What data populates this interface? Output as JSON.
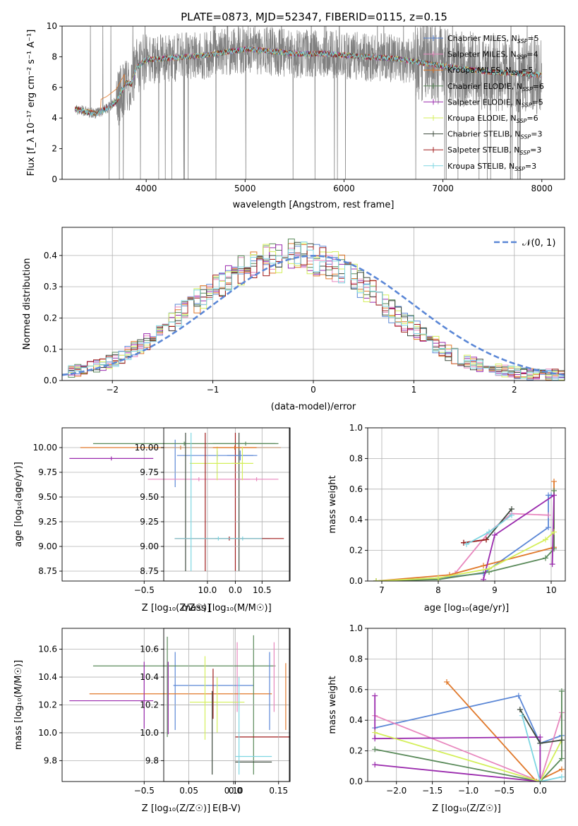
{
  "colors": {
    "Chabrier MILES": "#5b87d6",
    "Salpeter MILES": "#e887be",
    "Kroupa MILES": "#e0782a",
    "Chabrier ELODIE": "#5a8a5a",
    "Salpeter ELODIE": "#9a2aad",
    "Kroupa ELODIE": "#d4ef5a",
    "Chabrier STELIB": "#3d4a3d",
    "Salpeter STELIB": "#a01c1c",
    "Kroupa STELIB": "#7ed6e2",
    "data": "#808080",
    "gauss": "#5b87d6"
  },
  "chart_data": [
    {
      "type": "line",
      "title": "PLATE=0873, MJD=52347, FIBERID=0115, z=0.15",
      "xlabel": "wavelength [Angstrom, rest frame]",
      "ylabel": "Flux [f_λ 10⁻¹⁷ erg cm⁻² s⁻¹ A⁻¹]",
      "xlim": [
        3150,
        8230
      ],
      "ylim": [
        0,
        10
      ],
      "xticks": [
        4000,
        5000,
        6000,
        7000,
        8000
      ],
      "yticks": [
        0,
        2,
        4,
        6,
        8,
        10
      ],
      "legend_position": "right",
      "legend": [
        {
          "model": "Chabrier MILES",
          "label": "Chabrier MILES, N",
          "n": "5"
        },
        {
          "model": "Salpeter MILES",
          "label": "Salpeter MILES, N",
          "n": "4"
        },
        {
          "model": "Kroupa MILES",
          "label": "Kroupa MILES, N",
          "n": "5"
        },
        {
          "model": "Chabrier ELODIE",
          "label": "Chabrier ELODIE, N",
          "n": "6"
        },
        {
          "model": "Salpeter ELODIE",
          "label": "Salpeter ELODIE, N",
          "n": "5"
        },
        {
          "model": "Kroupa ELODIE",
          "label": "Kroupa ELODIE, N",
          "n": "6"
        },
        {
          "model": "Chabrier STELIB",
          "label": "Chabrier STELIB, N",
          "n": "3"
        },
        {
          "model": "Salpeter STELIB",
          "label": "Salpeter STELIB, N",
          "n": "3"
        },
        {
          "model": "Kroupa STELIB",
          "label": "Kroupa STELIB, N",
          "n": "3"
        }
      ],
      "legend_subscript": "SSP",
      "model_envelope": {
        "x": [
          3280,
          3400,
          3500,
          3600,
          3700,
          3800,
          3850,
          3900,
          4000,
          4200,
          4400,
          4600,
          4800,
          5000,
          5200,
          5500,
          5800,
          6000,
          6200,
          6500,
          6800,
          7000,
          7200,
          7500,
          7800,
          8000
        ],
        "y": [
          4.6,
          4.4,
          4.3,
          4.6,
          5.1,
          6.3,
          6.2,
          7.3,
          7.8,
          7.9,
          8.0,
          8.1,
          8.3,
          8.5,
          8.4,
          8.2,
          8.2,
          8.1,
          8.0,
          7.9,
          7.6,
          7.4,
          7.2,
          7.0,
          6.9,
          6.8
        ]
      },
      "noise_amplitude": 1.6
    },
    {
      "type": "bar",
      "xlabel": "(data-model)/error",
      "ylabel": "Normed distribution",
      "xlim": [
        -2.5,
        2.5
      ],
      "ylim": [
        0,
        0.49
      ],
      "xticks": [
        -2,
        -1,
        0,
        1,
        2
      ],
      "yticks": [
        0.0,
        0.1,
        0.2,
        0.3,
        0.4
      ],
      "legend_position": "upper right",
      "gauss_label": "𝒩(0, 1)",
      "bin_width": 0.1,
      "bin_start": -2.5,
      "envelope": [
        0.025,
        0.03,
        0.033,
        0.036,
        0.04,
        0.045,
        0.052,
        0.06,
        0.068,
        0.078,
        0.088,
        0.099,
        0.11,
        0.125,
        0.14,
        0.155,
        0.17,
        0.19,
        0.21,
        0.225,
        0.24,
        0.255,
        0.27,
        0.285,
        0.3,
        0.315,
        0.325,
        0.34,
        0.35,
        0.36,
        0.37,
        0.38,
        0.385,
        0.39,
        0.395,
        0.4,
        0.4,
        0.4,
        0.395,
        0.39,
        0.385,
        0.38,
        0.375,
        0.365,
        0.355,
        0.34,
        0.325,
        0.31,
        0.295,
        0.28,
        0.255,
        0.235,
        0.22,
        0.205,
        0.19,
        0.175,
        0.16,
        0.145,
        0.13,
        0.115,
        0.1,
        0.088,
        0.078,
        0.068,
        0.06,
        0.053,
        0.047,
        0.042,
        0.037,
        0.033,
        0.03,
        0.028,
        0.026,
        0.024,
        0.022,
        0.02,
        0.019,
        0.018,
        0.017,
        0.016
      ],
      "spread": 0.045
    },
    {
      "type": "scatter",
      "panel": "age_vs_Z",
      "xlabel": "Z [log₁₀(Z/Z☉)]",
      "ylabel": "age  [log₁₀(age/yr)]",
      "xlim": [
        -0.95,
        0.3
      ],
      "ylim": [
        8.65,
        10.2
      ],
      "xticks": [
        -0.5,
        0.0
      ],
      "yticks": [
        8.75,
        9.0,
        9.25,
        9.5,
        9.75,
        10.0
      ],
      "points": [
        {
          "model": "Chabrier MILES",
          "x": -0.1,
          "xerr": 0.22,
          "y": 9.92,
          "yerr": 0.05
        },
        {
          "model": "Chabrier MILES",
          "x": -0.33,
          "xerr": 0.0,
          "y": 9.84,
          "yerr": 0.24
        },
        {
          "model": "Salpeter MILES",
          "x": -0.2,
          "xerr": 0.28,
          "y": 9.68,
          "yerr": 0.02
        },
        {
          "model": "Kroupa MILES",
          "x": -0.3,
          "xerr": 0.55,
          "y": 10.0,
          "yerr": 0.02
        },
        {
          "model": "Chabrier ELODIE",
          "x": -0.28,
          "xerr": 0.5,
          "y": 10.04,
          "yerr": 0.02
        },
        {
          "model": "Salpeter ELODIE",
          "x": -0.68,
          "xerr": 0.23,
          "y": 9.89,
          "yerr": 0.02
        },
        {
          "model": "Kroupa ELODIE",
          "x": -0.1,
          "xerr": 0.15,
          "y": 9.84,
          "yerr": 0.17
        },
        {
          "model": "Chabrier STELIB",
          "x": 0.02,
          "xerr": 0.0,
          "y": 9.45,
          "yerr": 0.7
        },
        {
          "model": "Salpeter STELIB",
          "x": 0.0,
          "xerr": 0.0,
          "y": 9.45,
          "yerr": 0.7
        },
        {
          "model": "Kroupa STELIB",
          "x": 0.04,
          "xerr": 0.15,
          "y": 9.08,
          "yerr": 0.02
        }
      ]
    },
    {
      "type": "scatter",
      "panel": "age_vs_mass",
      "xlabel": "mass [log₁₀(M/M☉)]",
      "xlim": [
        9.6,
        10.75
      ],
      "ylim": [
        8.65,
        10.2
      ],
      "xticks": [
        10.0,
        10.5
      ],
      "yticks": [
        8.75,
        9.0,
        9.25,
        9.5,
        9.75,
        10.0
      ],
      "points": [
        {
          "model": "Chabrier MILES",
          "x": 10.3,
          "xerr": 0.12,
          "y": 9.92,
          "yerr": 0.05
        },
        {
          "model": "Salpeter MILES",
          "x": 10.45,
          "xerr": 0.2,
          "y": 9.68,
          "yerr": 0.02
        },
        {
          "model": "Kroupa MILES",
          "x": 10.25,
          "xerr": 0.2,
          "y": 10.0,
          "yerr": 0.02
        },
        {
          "model": "Chabrier ELODIE",
          "x": 10.35,
          "xerr": 0.3,
          "y": 10.04,
          "yerr": 0.02
        },
        {
          "model": "Kroupa ELODIE",
          "x": 10.32,
          "xerr": 0.1,
          "y": 9.84,
          "yerr": 0.17
        },
        {
          "model": "Chabrier STELIB",
          "x": 9.8,
          "xerr": 0.0,
          "y": 9.45,
          "yerr": 0.7
        },
        {
          "model": "Salpeter STELIB",
          "x": 9.98,
          "xerr": 0.0,
          "y": 9.45,
          "yerr": 0.7
        },
        {
          "model": "Salpeter STELIB",
          "x": 10.2,
          "xerr": 0.5,
          "y": 9.08,
          "yerr": 0.02
        },
        {
          "model": "Kroupa STELIB",
          "x": 9.85,
          "xerr": 0.0,
          "y": 9.45,
          "yerr": 0.7
        },
        {
          "model": "Kroupa STELIB",
          "x": 10.1,
          "xerr": 0.4,
          "y": 9.08,
          "yerr": 0.02
        }
      ]
    },
    {
      "type": "line",
      "panel": "weight_vs_age",
      "xlabel": "age  [log₁₀(age/yr)]",
      "ylabel": "mass weight",
      "xlim": [
        6.75,
        10.25
      ],
      "ylim": [
        0,
        1
      ],
      "xticks": [
        7,
        8,
        9,
        10
      ],
      "yticks": [
        0.0,
        0.2,
        0.4,
        0.6,
        0.8,
        1.0
      ],
      "series": [
        {
          "model": "Chabrier MILES",
          "x": [
            6.9,
            8.0,
            8.8,
            9.95,
            9.95,
            10.0
          ],
          "y": [
            0.0,
            0.02,
            0.05,
            0.35,
            0.56,
            0.56
          ]
        },
        {
          "model": "Salpeter MILES",
          "x": [
            8.3,
            8.9,
            9.3,
            9.95
          ],
          "y": [
            0.05,
            0.32,
            0.44,
            0.43
          ]
        },
        {
          "model": "Kroupa MILES",
          "x": [
            6.9,
            8.2,
            8.8,
            10.05,
            10.05
          ],
          "y": [
            0.0,
            0.04,
            0.1,
            0.22,
            0.65
          ]
        },
        {
          "model": "Chabrier ELODIE",
          "x": [
            6.9,
            8.0,
            8.9,
            9.9,
            10.05,
            10.05
          ],
          "y": [
            0.0,
            0.01,
            0.06,
            0.15,
            0.21,
            0.59
          ]
        },
        {
          "model": "Salpeter ELODIE",
          "x": [
            8.8,
            9.0,
            10.05,
            10.02
          ],
          "y": [
            0.01,
            0.3,
            0.56,
            0.11
          ]
        },
        {
          "model": "Kroupa ELODIE",
          "x": [
            6.9,
            8.0,
            8.9,
            9.9,
            10.05
          ],
          "y": [
            0.0,
            0.02,
            0.08,
            0.27,
            0.32
          ]
        },
        {
          "model": "Chabrier STELIB",
          "x": [
            8.45,
            8.85,
            9.3
          ],
          "y": [
            0.25,
            0.27,
            0.47
          ]
        },
        {
          "model": "Salpeter STELIB",
          "x": [
            8.45,
            8.85
          ],
          "y": [
            0.25,
            0.27
          ]
        },
        {
          "model": "Kroupa STELIB",
          "x": [
            8.5,
            8.9,
            9.3
          ],
          "y": [
            0.24,
            0.32,
            0.43
          ]
        }
      ]
    },
    {
      "type": "scatter",
      "panel": "mass_vs_Z",
      "xlabel": "Z [log₁₀(Z/Z☉)]",
      "ylabel": "mass [log₁₀(M/M☉)]",
      "xlim": [
        -0.95,
        0.3
      ],
      "ylim": [
        9.65,
        10.75
      ],
      "xticks": [
        -0.5,
        0.0
      ],
      "yticks": [
        9.8,
        10.0,
        10.2,
        10.4,
        10.6
      ],
      "points": [
        {
          "model": "Chabrier MILES",
          "x": -0.12,
          "xerr": 0.22,
          "y": 10.34,
          "yerr": 0.0
        },
        {
          "model": "Chabrier MILES",
          "x": -0.33,
          "xerr": 0.0,
          "y": 10.3,
          "yerr": 0.28
        },
        {
          "model": "Salpeter MILES",
          "x": 0.01,
          "xerr": 0.0,
          "y": 10.4,
          "yerr": 0.25
        },
        {
          "model": "Kroupa MILES",
          "x": -0.3,
          "xerr": 0.5,
          "y": 10.28,
          "yerr": 0.0
        },
        {
          "model": "Chabrier ELODIE",
          "x": -0.28,
          "xerr": 0.5,
          "y": 10.48,
          "yerr": 0.0
        },
        {
          "model": "Chabrier ELODIE",
          "x": 0.1,
          "xerr": 0.0,
          "y": 10.2,
          "yerr": 0.5
        },
        {
          "model": "Salpeter ELODIE",
          "x": -0.68,
          "xerr": 0.23,
          "y": 10.23,
          "yerr": 0.0
        },
        {
          "model": "Salpeter ELODIE",
          "x": -0.5,
          "xerr": 0.0,
          "y": 10.27,
          "yerr": 0.24
        },
        {
          "model": "Kroupa ELODIE",
          "x": -0.1,
          "xerr": 0.15,
          "y": 10.22,
          "yerr": 0.0
        },
        {
          "model": "Kroupa ELODIE",
          "x": -0.1,
          "xerr": 0.0,
          "y": 10.2,
          "yerr": 0.2
        },
        {
          "model": "Salpeter STELIB",
          "x": 0.15,
          "xerr": 0.15,
          "y": 9.97,
          "yerr": 0.0
        },
        {
          "model": "Chabrier STELIB",
          "x": 0.1,
          "xerr": 0.1,
          "y": 9.79,
          "yerr": 0.0
        },
        {
          "model": "Kroupa STELIB",
          "x": 0.1,
          "xerr": 0.1,
          "y": 9.83,
          "yerr": 0.0
        },
        {
          "model": "Kroupa STELIB",
          "x": 0.02,
          "xerr": 0.0,
          "y": 10.05,
          "yerr": 0.35
        }
      ]
    },
    {
      "type": "scatter",
      "panel": "mass_vs_EBV",
      "xlabel": "E(B-V)",
      "xlim": [
        0.022,
        0.162
      ],
      "ylim": [
        9.65,
        10.75
      ],
      "xticks": [
        0.05,
        0.1,
        0.15
      ],
      "yticks": [
        9.8,
        10.0,
        10.2,
        10.4,
        10.6
      ],
      "points": [
        {
          "model": "Chabrier ELODIE",
          "x": 0.026,
          "xerr": 0.0,
          "y": 10.33,
          "yerr": 0.36
        },
        {
          "model": "Salpeter ELODIE",
          "x": 0.027,
          "xerr": 0.0,
          "y": 10.25,
          "yerr": 0.26
        },
        {
          "model": "Kroupa ELODIE",
          "x": 0.068,
          "xerr": 0.0,
          "y": 10.25,
          "yerr": 0.3
        },
        {
          "model": "Salpeter STELIB",
          "x": 0.077,
          "xerr": 0.0,
          "y": 10.28,
          "yerr": 0.18
        },
        {
          "model": "Chabrier STELIB",
          "x": 0.076,
          "xerr": 0.0,
          "y": 10.0,
          "yerr": 0.3
        },
        {
          "model": "Chabrier MILES",
          "x": 0.14,
          "xerr": 0.0,
          "y": 10.3,
          "yerr": 0.28
        },
        {
          "model": "Salpeter MILES",
          "x": 0.145,
          "xerr": 0.0,
          "y": 10.4,
          "yerr": 0.25
        },
        {
          "model": "Kroupa MILES",
          "x": 0.158,
          "xerr": 0.0,
          "y": 10.26,
          "yerr": 0.24
        }
      ]
    },
    {
      "type": "line",
      "panel": "weight_vs_Z",
      "xlabel": "Z [log₁₀(Z/Z☉)]",
      "ylabel": "mass weight",
      "xlim": [
        -2.4,
        0.35
      ],
      "ylim": [
        0,
        1
      ],
      "xticks": [
        -2.0,
        -1.5,
        -1.0,
        -0.5,
        0.0
      ],
      "yticks": [
        0.0,
        0.2,
        0.4,
        0.6,
        0.8,
        1.0
      ],
      "series": [
        {
          "model": "Chabrier MILES",
          "x": [
            -2.3,
            -0.3,
            0.0,
            0.3
          ],
          "y": [
            0.35,
            0.56,
            0.25,
            0.3
          ]
        },
        {
          "model": "Salpeter MILES",
          "x": [
            -2.3,
            0.0,
            0.3
          ],
          "y": [
            0.43,
            0.0,
            0.45
          ]
        },
        {
          "model": "Kroupa MILES",
          "x": [
            -1.3,
            -0.05,
            0.3
          ],
          "y": [
            0.65,
            0.0,
            0.08
          ]
        },
        {
          "model": "Chabrier ELODIE",
          "x": [
            -2.3,
            0.0,
            0.3,
            0.3
          ],
          "y": [
            0.21,
            0.0,
            0.15,
            0.59
          ]
        },
        {
          "model": "Salpeter ELODIE",
          "x": [
            -2.3,
            -2.3,
            0.0,
            0.0,
            -2.3
          ],
          "y": [
            0.56,
            0.28,
            0.29,
            0.0,
            0.11
          ]
        },
        {
          "model": "Kroupa ELODIE",
          "x": [
            -2.3,
            0.0,
            0.3
          ],
          "y": [
            0.32,
            0.0,
            0.27
          ]
        },
        {
          "model": "Chabrier STELIB",
          "x": [
            -0.28,
            0.0,
            0.3
          ],
          "y": [
            0.47,
            0.25,
            0.27
          ]
        },
        {
          "model": "Kroupa STELIB",
          "x": [
            -0.25,
            0.0,
            0.3
          ],
          "y": [
            0.43,
            0.0,
            0.03
          ]
        }
      ]
    }
  ]
}
